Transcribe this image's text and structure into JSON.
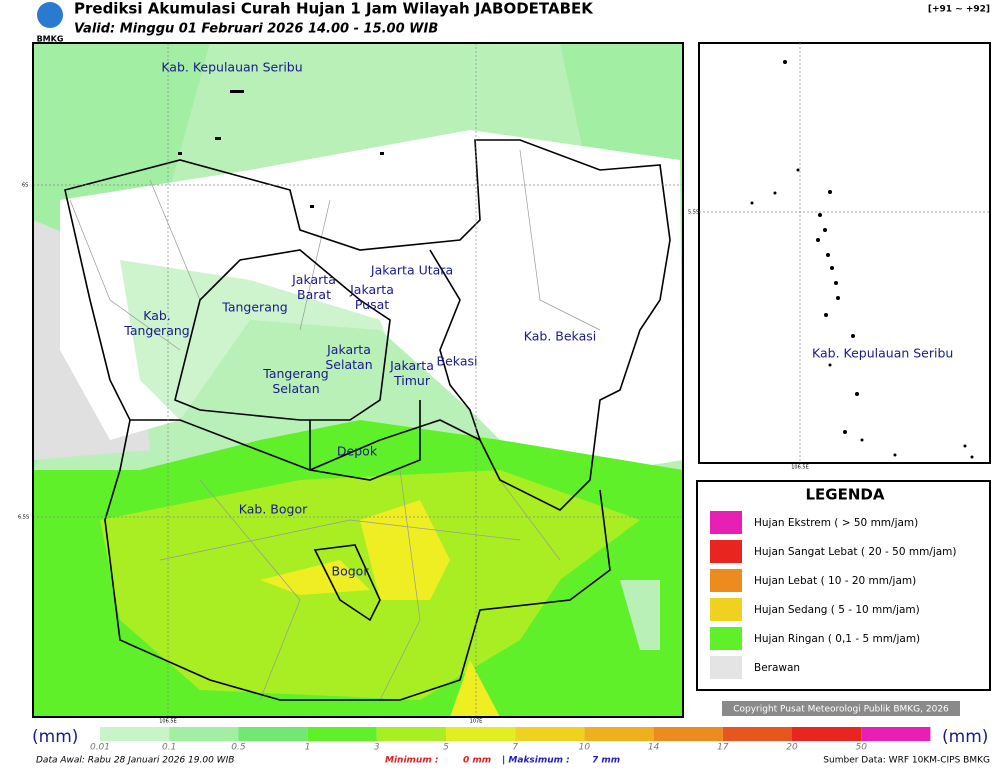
{
  "header": {
    "logo": "BMKG",
    "title": "Prediksi Akumulasi Curah Hujan 1 Jam Wilayah JABODETABEK",
    "subtitle": "Valid: Minggu 01 Februari 2026 14.00 - 15.00 WIB",
    "code": "[+91 ~ +92]"
  },
  "map": {
    "regions": [
      {
        "lines": [
          "Kab. Kepulauan Seribu"
        ]
      },
      {
        "lines": [
          "Jakarta Utara"
        ]
      },
      {
        "lines": [
          "Jakarta",
          "Barat"
        ]
      },
      {
        "lines": [
          "Jakarta",
          "Pusat"
        ]
      },
      {
        "lines": [
          "Tangerang"
        ]
      },
      {
        "lines": [
          "Kab.",
          "Tangerang"
        ]
      },
      {
        "lines": [
          "Jakarta",
          "Selatan"
        ]
      },
      {
        "lines": [
          "Jakarta",
          "Timur"
        ]
      },
      {
        "lines": [
          "Bekasi"
        ]
      },
      {
        "lines": [
          "Kab. Bekasi"
        ]
      },
      {
        "lines": [
          "Tangerang",
          "Selatan"
        ]
      },
      {
        "lines": [
          "Depok"
        ]
      },
      {
        "lines": [
          "Kab. Bogor"
        ]
      },
      {
        "lines": [
          "Bogor"
        ]
      }
    ],
    "lat_labels": [
      "6S",
      "6.5S"
    ],
    "lon_labels": [
      "106.5E",
      "107E"
    ]
  },
  "inset": {
    "region": "Kab. Kepulauan Seribu",
    "lat_label": "5.5S",
    "lon_label": "106.5E"
  },
  "legend": {
    "title": "LEGENDA",
    "items": [
      {
        "label": "Hujan Ekstrem ( > 50 mm/jam)",
        "color": "#e81fb4"
      },
      {
        "label": "Hujan Sangat Lebat ( 20 - 50 mm/jam)",
        "color": "#e8261f"
      },
      {
        "label": "Hujan Lebat ( 10 - 20 mm/jam)",
        "color": "#ee8b1f"
      },
      {
        "label": "Hujan Sedang ( 5 - 10 mm/jam)",
        "color": "#eed21f"
      },
      {
        "label": "Hujan Ringan ( 0,1 - 5 mm/jam)",
        "color": "#5ff02a"
      },
      {
        "label": "Berawan",
        "color": "#e4e4e4"
      }
    ]
  },
  "colorbar": {
    "unit": "(mm)",
    "ticks": [
      "0.01",
      "0.1",
      "0.5",
      "1",
      "3",
      "5",
      "7",
      "10",
      "14",
      "17",
      "20",
      "50"
    ],
    "colors": [
      "#e0e0e0",
      "#c8f5c8",
      "#a2eea2",
      "#72e872",
      "#5ff02a",
      "#a8ee22",
      "#e0ee22",
      "#eed21f",
      "#eeb01f",
      "#ee8b1f",
      "#e8561f",
      "#e8261f",
      "#e81fb4"
    ]
  },
  "footer": {
    "copyright": "Copyright Pusat Meteorologi Publik BMKG, 2026",
    "data_awal": "Data Awal: Rabu 28 Januari 2026 19.00 WIB",
    "min_label": "Minimum :",
    "min_value": "0 mm",
    "max_label": "| Maksimum :",
    "max_value": "7 mm",
    "source": "Sumber Data: WRF 10KM-CIPS BMKG"
  }
}
